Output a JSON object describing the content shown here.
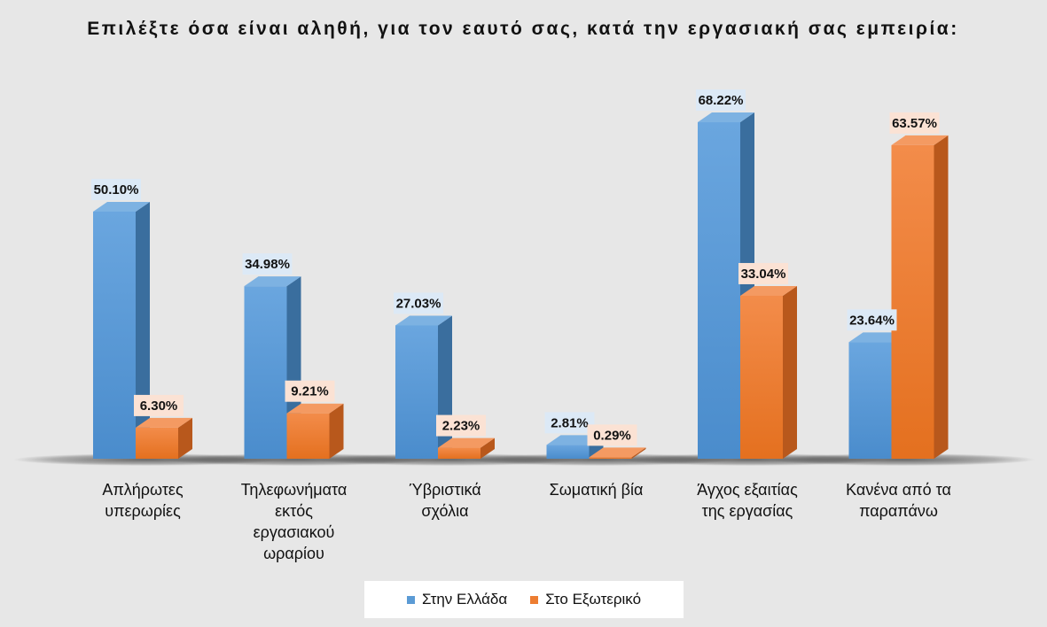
{
  "chart_data": {
    "type": "bar",
    "title": "Επιλέξτε όσα είναι αληθή, για τον εαυτό σας, κατά την εργασιακή σας εμπειρία:",
    "categories": [
      [
        "Απλήρωτες",
        "υπερωρίες"
      ],
      [
        "Τηλεφωνήματα",
        "εκτός",
        "εργασιακού",
        "ωραρίου"
      ],
      [
        "Ύβριστικά",
        "σχόλια"
      ],
      [
        "Σωματική βία"
      ],
      [
        "Άγχος εξαιτίας",
        "της εργασίας"
      ],
      [
        "Κανένα από τα",
        "παραπάνω"
      ]
    ],
    "series": [
      {
        "name": "Στην Ελλάδα",
        "color": "#5b9bd5",
        "values": [
          50.1,
          34.98,
          27.03,
          2.81,
          68.22,
          23.64
        ],
        "labels": [
          "50.10%",
          "34.98%",
          "27.03%",
          "2.81%",
          "68.22%",
          "23.64%"
        ]
      },
      {
        "name": "Στο Εξωτερικό",
        "color": "#ed7d31",
        "values": [
          6.3,
          9.21,
          2.23,
          0.29,
          33.04,
          63.57
        ],
        "labels": [
          "6.30%",
          "9.21%",
          "2.23%",
          "0.29%",
          "33.04%",
          "63.57%"
        ]
      }
    ],
    "ylim": [
      0,
      70
    ],
    "grid": false,
    "legend": "bottom"
  }
}
